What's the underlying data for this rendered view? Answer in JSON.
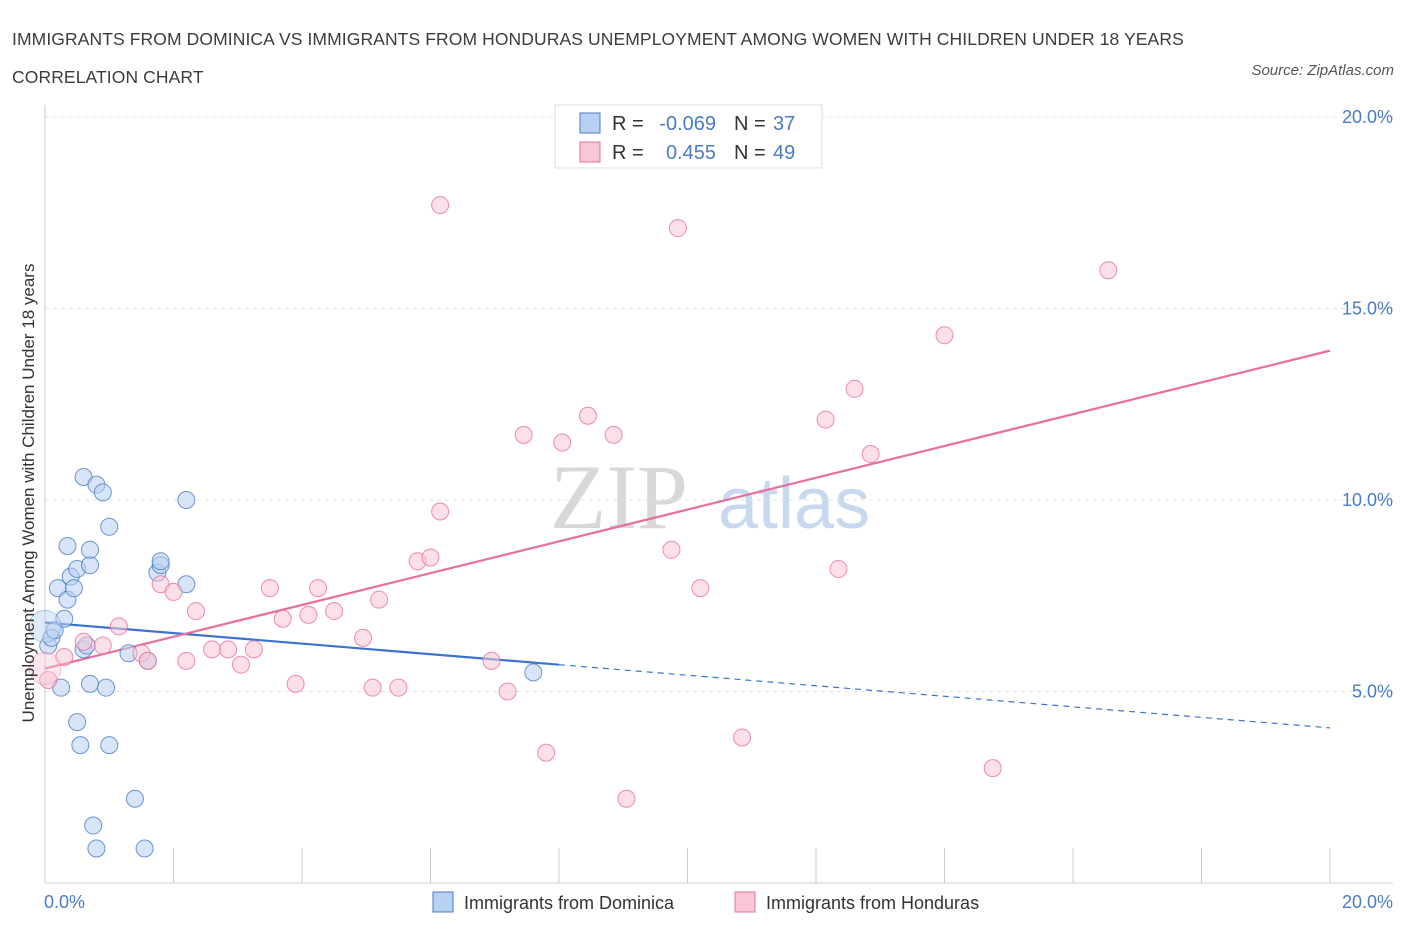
{
  "title": "IMMIGRANTS FROM DOMINICA VS IMMIGRANTS FROM HONDURAS UNEMPLOYMENT AMONG WOMEN WITH CHILDREN UNDER 18 YEARS CORRELATION CHART",
  "source": "Source: ZipAtlas.com",
  "watermark": {
    "zip": "ZIP",
    "atlas": "atlas"
  },
  "colors": {
    "blue": "#4a7cc4",
    "blue_fill": "#b8d0f2",
    "blue_line": "#3a74d0",
    "pink": "#e8709a",
    "pink_fill": "#f8c7d6",
    "text_blue": "#4a7cc4"
  },
  "stats_legend": [
    {
      "r_label": "R =",
      "r_value": "-0.069",
      "n_label": "N =",
      "n_value": "37"
    },
    {
      "r_label": "R =",
      "r_value": "0.455",
      "n_label": "N =",
      "n_value": "49"
    }
  ],
  "bottom_legend": [
    "Immigrants from Dominica",
    "Immigrants from Honduras"
  ],
  "chart_data": {
    "type": "scatter",
    "title": "IMMIGRANTS FROM DOMINICA VS IMMIGRANTS FROM HONDURAS UNEMPLOYMENT AMONG WOMEN WITH CHILDREN UNDER 18 YEARS CORRELATION CHART",
    "xlabel": "",
    "ylabel": "Unemployment Among Women with Children Under 18 years",
    "xlim": [
      0,
      20
    ],
    "ylim": [
      0,
      20
    ],
    "x_tick_labels": [
      "0.0%",
      "20.0%"
    ],
    "y_ticks": [
      5,
      10,
      15,
      20
    ],
    "y_tick_labels": [
      "5.0%",
      "10.0%",
      "15.0%",
      "20.0%"
    ],
    "grid": true,
    "series": [
      {
        "name": "Immigrants from Dominica",
        "points": [
          [
            0.05,
            6.2
          ],
          [
            0.1,
            6.4
          ],
          [
            0.15,
            6.6
          ],
          [
            0.2,
            7.7
          ],
          [
            0.25,
            5.1
          ],
          [
            0.3,
            6.9
          ],
          [
            0.35,
            8.8
          ],
          [
            0.35,
            7.4
          ],
          [
            0.4,
            8.0
          ],
          [
            0.45,
            7.7
          ],
          [
            0.5,
            8.2
          ],
          [
            0.5,
            4.2
          ],
          [
            0.55,
            3.6
          ],
          [
            0.6,
            10.6
          ],
          [
            0.6,
            6.1
          ],
          [
            0.65,
            6.2
          ],
          [
            0.7,
            8.3
          ],
          [
            0.7,
            8.7
          ],
          [
            0.7,
            5.2
          ],
          [
            0.75,
            1.5
          ],
          [
            0.8,
            10.4
          ],
          [
            0.8,
            0.9
          ],
          [
            0.9,
            10.2
          ],
          [
            0.95,
            5.1
          ],
          [
            1.0,
            9.3
          ],
          [
            1.0,
            3.6
          ],
          [
            1.3,
            6.0
          ],
          [
            1.4,
            2.2
          ],
          [
            1.55,
            0.9
          ],
          [
            1.6,
            5.8
          ],
          [
            1.75,
            8.1
          ],
          [
            1.8,
            8.3
          ],
          [
            1.8,
            8.4
          ],
          [
            2.2,
            10.0
          ],
          [
            2.2,
            7.8
          ],
          [
            7.6,
            5.5
          ],
          [
            0.0,
            6.7
          ]
        ]
      },
      {
        "name": "Immigrants from Honduras",
        "points": [
          [
            0.05,
            5.3
          ],
          [
            0.3,
            5.9
          ],
          [
            0.6,
            6.3
          ],
          [
            0.9,
            6.2
          ],
          [
            1.15,
            6.7
          ],
          [
            1.5,
            6.0
          ],
          [
            1.6,
            5.8
          ],
          [
            1.8,
            7.8
          ],
          [
            2.0,
            7.6
          ],
          [
            2.2,
            5.8
          ],
          [
            2.35,
            7.1
          ],
          [
            2.6,
            6.1
          ],
          [
            2.85,
            6.1
          ],
          [
            3.05,
            5.7
          ],
          [
            3.25,
            6.1
          ],
          [
            3.5,
            7.7
          ],
          [
            3.7,
            6.9
          ],
          [
            3.9,
            5.2
          ],
          [
            4.1,
            7.0
          ],
          [
            4.25,
            7.7
          ],
          [
            4.5,
            7.1
          ],
          [
            4.95,
            6.4
          ],
          [
            5.1,
            5.1
          ],
          [
            5.2,
            7.4
          ],
          [
            5.5,
            5.1
          ],
          [
            5.8,
            8.4
          ],
          [
            6.0,
            8.5
          ],
          [
            6.15,
            9.7
          ],
          [
            6.15,
            17.7
          ],
          [
            6.95,
            5.8
          ],
          [
            7.2,
            5.0
          ],
          [
            7.45,
            11.7
          ],
          [
            7.8,
            3.4
          ],
          [
            8.05,
            11.5
          ],
          [
            8.45,
            12.2
          ],
          [
            8.85,
            11.7
          ],
          [
            9.05,
            2.2
          ],
          [
            9.75,
            8.7
          ],
          [
            9.85,
            17.1
          ],
          [
            10.2,
            7.7
          ],
          [
            10.85,
            3.8
          ],
          [
            12.15,
            12.1
          ],
          [
            12.35,
            8.2
          ],
          [
            12.6,
            12.9
          ],
          [
            12.85,
            11.2
          ],
          [
            14.0,
            14.3
          ],
          [
            14.75,
            3.0
          ],
          [
            16.55,
            16.0
          ],
          [
            0.0,
            5.6
          ]
        ]
      }
    ],
    "trend_lines": [
      {
        "series": "Immigrants from Dominica",
        "x": [
          0,
          8.0
        ],
        "y": [
          6.8,
          5.7
        ],
        "dashed_extension_to": [
          20,
          4.05
        ]
      },
      {
        "series": "Immigrants from Honduras",
        "x": [
          0,
          20
        ],
        "y": [
          5.6,
          13.9
        ]
      }
    ]
  }
}
